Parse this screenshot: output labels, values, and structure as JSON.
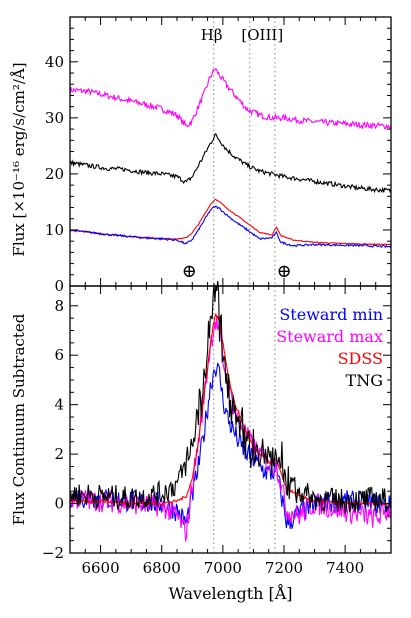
{
  "chart_data": [
    {
      "type": "line",
      "panel": "top",
      "ylabel": "Flux [×10⁻¹⁶ erg/s/cm²/Å]",
      "xlim": [
        6500,
        7550
      ],
      "ylim": [
        0,
        48
      ],
      "yticks": [
        0,
        10,
        20,
        30,
        40
      ],
      "grid": false,
      "line_labels": [
        "Hβ",
        "[OIII]"
      ],
      "vlines": [
        6970,
        7088,
        7170
      ],
      "telluric_markers": [
        6890,
        7200
      ],
      "telluric_symbol": "⊕",
      "series": [
        {
          "color": "#ff00ff",
          "x": [
            6500,
            6560,
            6620,
            6680,
            6740,
            6800,
            6850,
            6880,
            6900,
            6920,
            6940,
            6960,
            6975,
            6990,
            7010,
            7040,
            7080,
            7120,
            7160,
            7200,
            7260,
            7320,
            7380,
            7440,
            7500,
            7550
          ],
          "y": [
            35,
            34.7,
            34,
            33.2,
            32.5,
            31.6,
            30.5,
            28.5,
            29.5,
            32,
            34.5,
            37.5,
            38.8,
            37.5,
            36,
            34,
            31.5,
            30.5,
            30,
            30,
            29.5,
            29.2,
            29,
            28.8,
            28.6,
            28.5
          ]
        },
        {
          "color": "#000000",
          "x": [
            6500,
            6560,
            6620,
            6680,
            6740,
            6800,
            6850,
            6880,
            6900,
            6920,
            6940,
            6960,
            6975,
            6990,
            7010,
            7040,
            7080,
            7120,
            7160,
            7200,
            7260,
            7320,
            7380,
            7440,
            7500,
            7550
          ],
          "y": [
            22,
            21.5,
            21,
            20.8,
            20.3,
            20,
            19.5,
            18.5,
            19.5,
            21.5,
            23.5,
            25.5,
            27,
            26,
            24.5,
            23,
            21.5,
            20.5,
            20,
            19.5,
            19,
            18.5,
            18,
            17.5,
            17.2,
            17
          ]
        },
        {
          "color": "#ff0000",
          "x": [
            6500,
            6560,
            6620,
            6680,
            6740,
            6800,
            6850,
            6880,
            6900,
            6920,
            6940,
            6960,
            6975,
            6990,
            7010,
            7040,
            7080,
            7120,
            7160,
            7175,
            7190,
            7230,
            7300,
            7380,
            7460,
            7550
          ],
          "y": [
            10,
            9.6,
            9.2,
            8.9,
            8.7,
            8.5,
            8.4,
            8.6,
            9.5,
            11,
            12.8,
            14.6,
            15.5,
            15,
            14,
            12.8,
            11.2,
            9.6,
            9.1,
            10.5,
            9,
            8.2,
            7.8,
            7.6,
            7.5,
            7.4
          ]
        },
        {
          "color": "#0000ff",
          "x": [
            6500,
            6560,
            6620,
            6680,
            6740,
            6800,
            6850,
            6880,
            6900,
            6920,
            6940,
            6960,
            6975,
            6990,
            7010,
            7040,
            7080,
            7120,
            7160,
            7175,
            7190,
            7230,
            7300,
            7380,
            7460,
            7550
          ],
          "y": [
            10,
            9.6,
            9.2,
            8.9,
            8.6,
            8.4,
            8.2,
            7.5,
            8.3,
            10,
            11.8,
            13.6,
            14.2,
            13.8,
            12.8,
            11.5,
            10,
            8.4,
            8.6,
            9.5,
            7.8,
            7.2,
            7.4,
            7.3,
            7.2,
            7
          ]
        }
      ]
    },
    {
      "type": "line",
      "panel": "bottom",
      "ylabel": "Flux Continuum Subtracted",
      "xlabel": "Wavelength [Å]",
      "xlim": [
        6500,
        7550
      ],
      "ylim": [
        -2,
        8.8
      ],
      "yticks": [
        -2,
        0,
        2,
        4,
        6,
        8
      ],
      "xticks": [
        6600,
        6800,
        7000,
        7200,
        7400
      ],
      "grid": false,
      "vlines": [
        6970,
        7088,
        7170
      ],
      "legend_position": "top-right",
      "series": [
        {
          "name": "Steward min",
          "color": "#0000ff",
          "x": [
            6500,
            6600,
            6700,
            6800,
            6850,
            6880,
            6900,
            6920,
            6940,
            6960,
            6975,
            6990,
            7000,
            7020,
            7040,
            7060,
            7080,
            7100,
            7120,
            7140,
            7160,
            7175,
            7190,
            7210,
            7250,
            7300,
            7400,
            7500,
            7550
          ],
          "y": [
            0.3,
            0.2,
            0.1,
            0,
            -0.3,
            -0.8,
            0.3,
            1.5,
            3,
            4.8,
            5.6,
            5.2,
            4.2,
            3.3,
            2.8,
            2.3,
            2,
            1.8,
            1.5,
            1.3,
            1.2,
            1.4,
            0.4,
            -0.8,
            -0.4,
            0,
            0.1,
            0,
            -0.1
          ]
        },
        {
          "name": "Steward max",
          "color": "#ff00ff",
          "x": [
            6500,
            6600,
            6700,
            6800,
            6850,
            6880,
            6900,
            6920,
            6940,
            6960,
            6975,
            6990,
            7000,
            7020,
            7040,
            7060,
            7080,
            7100,
            7120,
            7140,
            7160,
            7175,
            7190,
            7210,
            7250,
            7300,
            7400,
            7500,
            7550
          ],
          "y": [
            0.2,
            0.1,
            0,
            -0.1,
            -0.5,
            -1.2,
            0.8,
            2.5,
            4.5,
            6.5,
            7.4,
            7,
            5.8,
            4.6,
            3.8,
            3.2,
            2.7,
            2.3,
            2,
            1.7,
            1.5,
            1.6,
            0.8,
            -0.3,
            -0.5,
            0,
            -0.3,
            -0.6,
            -0.2
          ]
        },
        {
          "name": "SDSS",
          "color": "#ff0000",
          "x": [
            6500,
            6600,
            6700,
            6800,
            6850,
            6880,
            6900,
            6920,
            6940,
            6960,
            6975,
            6990,
            7000,
            7020,
            7040,
            7060,
            7080,
            7100,
            7120,
            7140,
            7160,
            7175,
            7190,
            7210,
            7250,
            7300,
            7400,
            7500,
            7550
          ],
          "y": [
            0.1,
            0.1,
            0,
            0,
            0.1,
            0.3,
            1,
            2.5,
            4.5,
            6.5,
            7.7,
            7.4,
            6.5,
            5,
            4,
            3.4,
            2.8,
            2.3,
            2,
            1.8,
            1.6,
            1.8,
            1.2,
            0.6,
            0.3,
            0.1,
            0,
            0,
            0
          ]
        },
        {
          "name": "TNG",
          "color": "#000000",
          "x": [
            6500,
            6600,
            6700,
            6800,
            6850,
            6880,
            6900,
            6920,
            6940,
            6960,
            6975,
            6990,
            7000,
            7020,
            7040,
            7060,
            7080,
            7100,
            7120,
            7140,
            7160,
            7175,
            7190,
            7210,
            7250,
            7300,
            7400,
            7500,
            7550
          ],
          "y": [
            0.4,
            0.3,
            0.2,
            0.4,
            0.8,
            1.6,
            2.5,
            3.5,
            5,
            7.5,
            8.6,
            7.5,
            6,
            4.6,
            3.6,
            3,
            2.6,
            2.2,
            2,
            1.9,
            1.8,
            2,
            1.6,
            1,
            0.5,
            0.2,
            0.1,
            0.2,
            0.1
          ]
        }
      ]
    }
  ]
}
